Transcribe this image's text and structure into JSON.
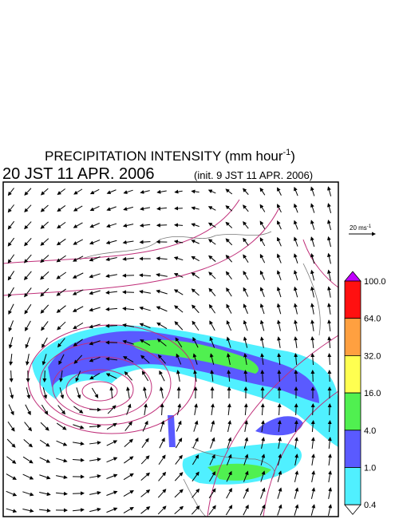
{
  "header": {
    "title": [
      "PRECIPITATION INTENSITY (mm hour",
      "-1",
      ")"
    ],
    "valid_time": "20 JST 11 APR. 2006",
    "init_time": "(init. 9 JST 11 APR. 2006)"
  },
  "reference_vector": [
    "20 ms",
    "-1"
  ],
  "colorbar": {
    "labels": [
      "100.0",
      "64.0",
      "32.0",
      "16.0",
      "4.0",
      "1.0",
      "0.4"
    ],
    "colors": [
      "#c000ff",
      "#ff1010",
      "#ffa040",
      "#ffff50",
      "#50f050",
      "#5a5aff",
      "#50f0ff",
      "#ffffff"
    ]
  }
}
